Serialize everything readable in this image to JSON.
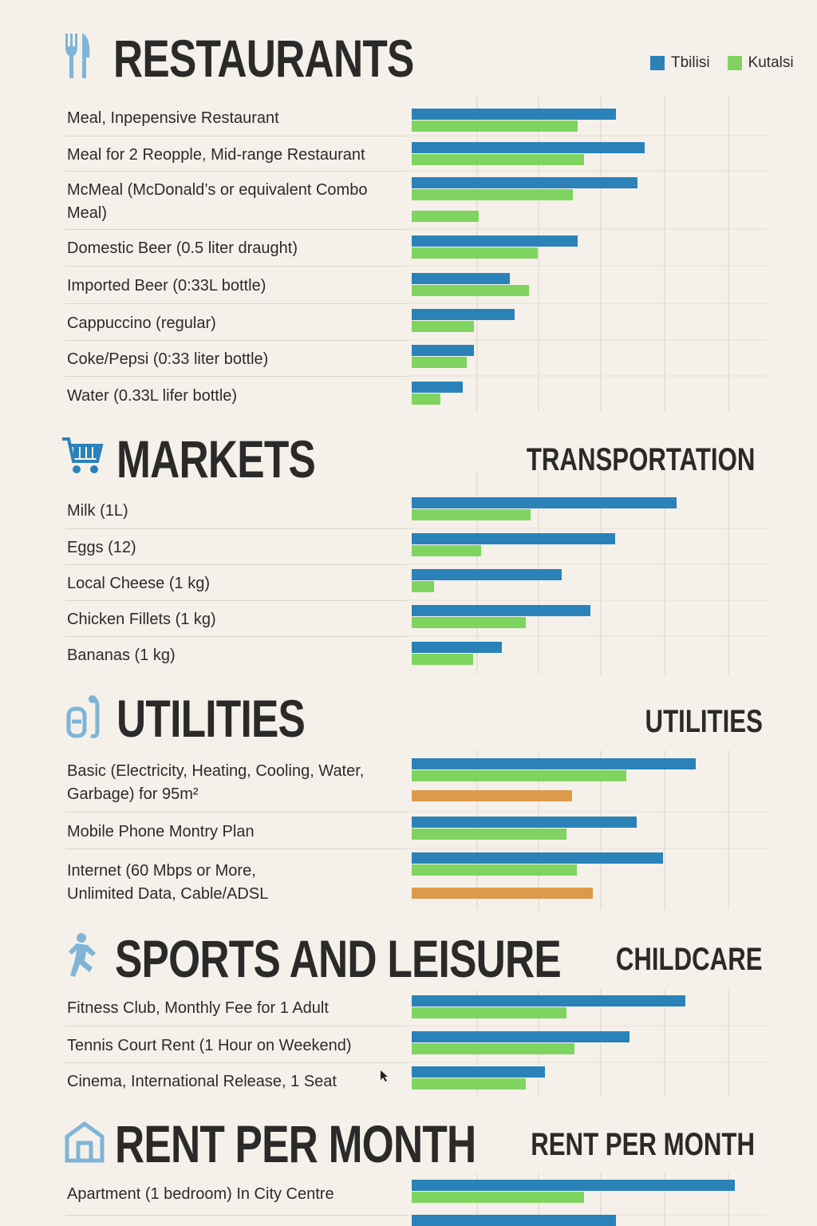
{
  "legend": [
    {
      "name": "Tbilisi",
      "color": "#2a82b8"
    },
    {
      "name": "Kutalsi",
      "color": "#7fd45f"
    }
  ],
  "colors": {
    "third": "#dc9a4a",
    "icon": "#7fb4d6",
    "title": "#2a2a2a"
  },
  "sections": [
    {
      "title": "RESTAURANTS",
      "subtitle": "",
      "icon": "fork-knife-icon"
    },
    {
      "title": "MARKETS",
      "subtitle": "TRANSPORTATION",
      "icon": "shopping-cart-icon"
    },
    {
      "title": "UTILITIES",
      "subtitle": "UTILITIES",
      "icon": "utility-icon"
    },
    {
      "title": "SPORTS AND LEISURE",
      "subtitle": "CHILDCARE",
      "icon": "runner-icon"
    },
    {
      "title": "RENT PER MONTH",
      "subtitle": "RENT PER MONTH",
      "icon": "house-icon"
    }
  ],
  "chart_data": {
    "type": "bar",
    "orientation": "horizontal",
    "value_scale": "relative units (no axis labels shown)",
    "grid": true,
    "legend_position": "top-right",
    "series": [
      {
        "name": "Tbilisi",
        "color": "#2a82b8"
      },
      {
        "name": "Kutalsi",
        "color": "#7fd45f"
      },
      {
        "color": "#dc9a4a"
      }
    ],
    "groups": [
      {
        "section": 0,
        "items": [
          {
            "label": "Meal, Inpepensive Restaurant",
            "values": [
              256,
              208
            ]
          },
          {
            "label": "Meal for 2 Reopple, Mid-range Restaurant",
            "values": [
              292,
              216
            ]
          },
          {
            "label": "McMeal (McDonald’s or equivalent Combo Meal)",
            "values": [
              283,
              202,
              84
            ]
          },
          {
            "label": "Domestic Beer (0.5 liter draught)",
            "values": [
              208,
              158
            ]
          },
          {
            "label": "Imported Beer (0:33L bottle)",
            "values": [
              123,
              147
            ]
          },
          {
            "label": "Cappuccino (regular)",
            "values": [
              129,
              78
            ]
          },
          {
            "label": "Coke/Pepsi (0:33 liter bottle)",
            "values": [
              78,
              69
            ]
          },
          {
            "label": "Water (0.33L lifer bottle)",
            "values": [
              64,
              36
            ]
          }
        ]
      },
      {
        "section": 1,
        "items": [
          {
            "label": "Milk (1L)",
            "values": [
              332,
              149
            ]
          },
          {
            "label": "Eggs (12)",
            "values": [
              255,
              87
            ]
          },
          {
            "label": "Local Cheese (1 kg)",
            "values": [
              188,
              28
            ]
          },
          {
            "label": "Chicken Fillets (1 kg)",
            "values": [
              224,
              143
            ]
          },
          {
            "label": "Bananas (1 kg)",
            "values": [
              113,
              77
            ]
          }
        ]
      },
      {
        "section": 2,
        "items": [
          {
            "label": "Basic (Electricity, Heating, Cooling, Water, Garbage) for 95m²",
            "values": [
              356,
              269,
              201
            ]
          },
          {
            "label": "Mobile Phone Montry Plan",
            "values": [
              282,
              194
            ]
          },
          {
            "label": "Internet (60 Mbps or More, Unlimited Data, Cable/ADSL",
            "values": [
              315,
              207,
              227
            ]
          }
        ]
      },
      {
        "section": 3,
        "items": [
          {
            "label": "Fitness Club, Monthly Fee for 1 Adult",
            "values": [
              343,
              194
            ]
          },
          {
            "label": "Tennis Court Rent (1 Hour on Weekend)",
            "values": [
              273,
              204
            ]
          },
          {
            "label": "Cinema, International Release, 1 Seat",
            "values": [
              167,
              143
            ]
          }
        ]
      },
      {
        "section": 4,
        "items": [
          {
            "label": "Apartment (1 bedroom) In City Centre",
            "values": [
              405,
              216
            ]
          },
          {
            "label": "",
            "values": [
              256
            ]
          }
        ]
      }
    ]
  }
}
